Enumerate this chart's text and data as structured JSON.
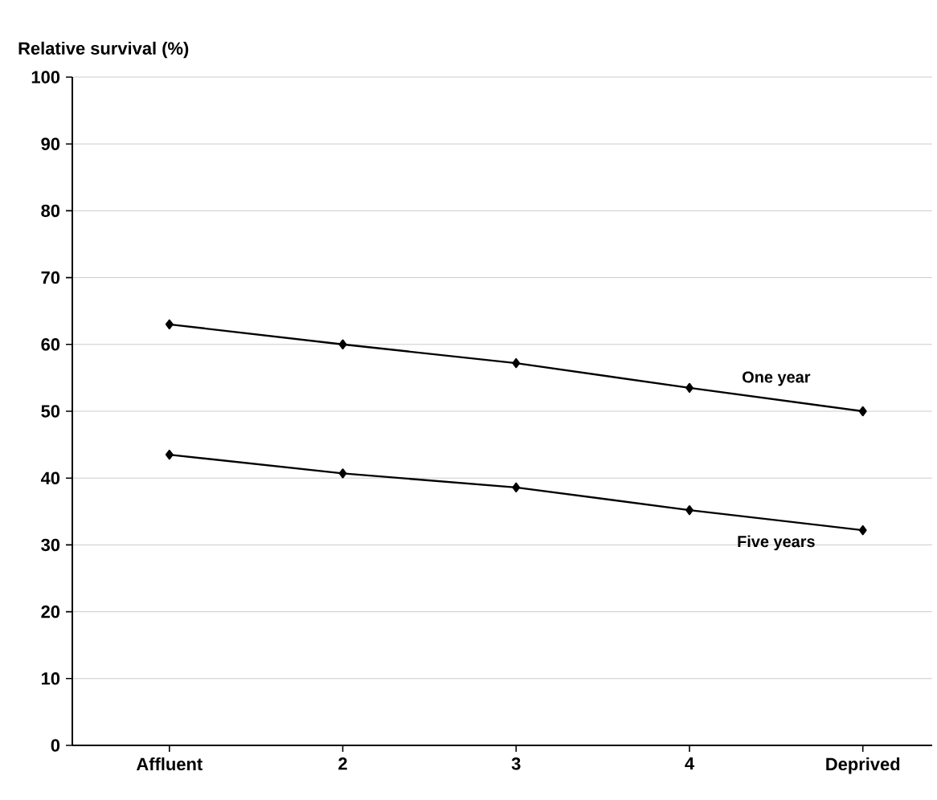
{
  "chart_data": {
    "type": "line",
    "ylabel": "Relative survival (%)",
    "categories": [
      "Affluent",
      "2",
      "3",
      "4",
      "Deprived"
    ],
    "series": [
      {
        "name": "One year",
        "color": "#000000",
        "values": [
          63,
          60,
          57.2,
          53.5,
          50
        ]
      },
      {
        "name": "Five years",
        "color": "#000000",
        "values": [
          43.5,
          40.7,
          38.6,
          35.2,
          32.2
        ]
      }
    ],
    "ylim": [
      0,
      100
    ],
    "yticks": [
      0,
      10,
      20,
      30,
      40,
      50,
      60,
      70,
      80,
      90,
      100
    ],
    "grid": "y",
    "marker": "diamond",
    "line_style": "solid"
  }
}
